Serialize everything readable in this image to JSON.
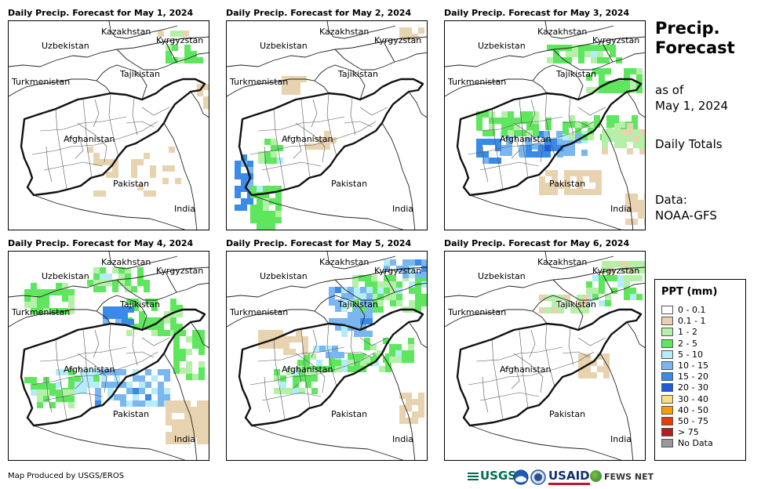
{
  "panels": [
    {
      "title": "Daily Precip. Forecast for May 1, 2024"
    },
    {
      "title": "Daily Precip. Forecast for May 2, 2024"
    },
    {
      "title": "Daily Precip. Forecast for May 3, 2024"
    },
    {
      "title": "Daily Precip. Forecast for May 4, 2024"
    },
    {
      "title": "Daily Precip. Forecast for May 5, 2024"
    },
    {
      "title": "Daily Precip. Forecast for May 6, 2024"
    }
  ],
  "countries": {
    "kazakhstan": "Kazakhstan",
    "kyrgyzstan": "Kyrgyzstan",
    "uzbekistan": "Uzbekistan",
    "tajikistan": "Tajikistan",
    "turkmenistan": "Turkmenistan",
    "afghanistan": "Afghanistan",
    "pakistan": "Pakistan",
    "india": "India"
  },
  "sidebar": {
    "heading_line1": "Precip.",
    "heading_line2": "Forecast",
    "as_of": "as of",
    "date": "May 1, 2024",
    "totals": "Daily Totals",
    "data_label": "Data:",
    "data_source": "NOAA-GFS"
  },
  "legend": {
    "title": "PPT (mm)",
    "items": [
      {
        "label": "0 - 0.1",
        "color": "#ffffff"
      },
      {
        "label": "0.1 - 1",
        "color": "#e8d3b0"
      },
      {
        "label": "1 - 2",
        "color": "#b4f0a8"
      },
      {
        "label": "2 - 5",
        "color": "#5ee65e"
      },
      {
        "label": "5 - 10",
        "color": "#b4ecf8"
      },
      {
        "label": "10 - 15",
        "color": "#7ab6f0"
      },
      {
        "label": "15 - 20",
        "color": "#3a8ae8"
      },
      {
        "label": "20 - 30",
        "color": "#1e5adc"
      },
      {
        "label": "30 - 40",
        "color": "#f8e080"
      },
      {
        "label": "40 - 50",
        "color": "#f0a000"
      },
      {
        "label": "50 - 75",
        "color": "#e83c00"
      },
      {
        "label": "> 75",
        "color": "#b41e1e"
      },
      {
        "label": "No Data",
        "color": "#999999"
      }
    ]
  },
  "footer": {
    "credit": "Map Produced by USGS/EROS",
    "logo_usgs": "USGS",
    "logo_usaid": "USAID",
    "logo_fews": "FEWS NET"
  }
}
